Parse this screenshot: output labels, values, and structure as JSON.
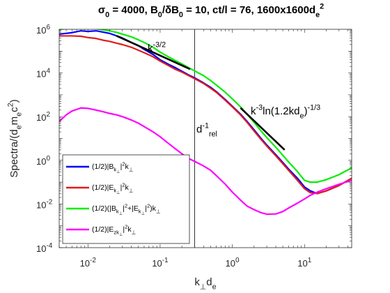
{
  "chart_data": {
    "type": "line",
    "title": {
      "parts": [
        {
          "t": "σ",
          "s": "n"
        },
        {
          "t": "0",
          "s": "sub"
        },
        {
          "t": " = 4000, B",
          "s": "n"
        },
        {
          "t": "0",
          "s": "sub"
        },
        {
          "t": "/δB",
          "s": "n"
        },
        {
          "t": "0",
          "s": "sub"
        },
        {
          "t": " = 10, ct/l = 76, 1600x1600d",
          "s": "n"
        },
        {
          "t": "e",
          "s": "sub"
        },
        {
          "t": "2",
          "s": "sup"
        }
      ]
    },
    "xlabel": {
      "parts": [
        {
          "t": "k",
          "s": "n"
        },
        {
          "t": "⊥",
          "s": "sub"
        },
        {
          "t": "d",
          "s": "n"
        },
        {
          "t": "e",
          "s": "sub"
        }
      ]
    },
    "ylabel": {
      "parts": [
        {
          "t": "Spectra/(d",
          "s": "n"
        },
        {
          "t": "e",
          "s": "sub"
        },
        {
          "t": "m",
          "s": "n"
        },
        {
          "t": "e",
          "s": "sub"
        },
        {
          "t": "c",
          "s": "n"
        },
        {
          "t": "2",
          "s": "sup"
        },
        {
          "t": ")",
          "s": "n"
        }
      ]
    },
    "xscale": "log",
    "yscale": "log",
    "xlim": [
      0.004,
      45
    ],
    "ylim": [
      0.0001,
      1000000
    ],
    "x_ticks": [
      {
        "value": 0.01,
        "base": "10",
        "exp": "-2"
      },
      {
        "value": 0.1,
        "base": "10",
        "exp": "-1"
      },
      {
        "value": 1,
        "base": "10",
        "exp": "0"
      },
      {
        "value": 10,
        "base": "10",
        "exp": "1"
      }
    ],
    "y_ticks": [
      {
        "value": 0.0001,
        "base": "10",
        "exp": "-4"
      },
      {
        "value": 0.01,
        "base": "10",
        "exp": "-2"
      },
      {
        "value": 1,
        "base": "10",
        "exp": "0"
      },
      {
        "value": 100,
        "base": "10",
        "exp": "2"
      },
      {
        "value": 10000,
        "base": "10",
        "exp": "4"
      },
      {
        "value": 1000000,
        "base": "10",
        "exp": "6"
      }
    ],
    "grid": false,
    "legend_position": "bottom-left",
    "series": [
      {
        "key": "B",
        "color": "#0000ff",
        "legend": [
          {
            "t": "(1/2)|B",
            "s": "n"
          },
          {
            "t": "k",
            "s": "sub"
          },
          {
            "t": "⊥",
            "s": "subsub"
          },
          {
            "t": "|",
            "s": "n"
          },
          {
            "t": "2",
            "s": "sup"
          },
          {
            "t": "k",
            "s": "n"
          },
          {
            "t": "⊥",
            "s": "sub"
          }
        ],
        "x": [
          0.004,
          0.006,
          0.008,
          0.01,
          0.013,
          0.016,
          0.02,
          0.025,
          0.03,
          0.04,
          0.05,
          0.06,
          0.08,
          0.1,
          0.13,
          0.16,
          0.2,
          0.25,
          0.3,
          0.4,
          0.5,
          0.6,
          0.8,
          1.0,
          1.3,
          1.6,
          2.0,
          2.5,
          3.0,
          4.0,
          5.0,
          6.0,
          8.0,
          10,
          12,
          15,
          20,
          30,
          45
        ],
        "y": [
          600000,
          700000,
          850000,
          800000,
          850000,
          750000,
          650000,
          500000,
          400000,
          250000,
          180000,
          120000,
          70000,
          40000,
          25000,
          18000,
          12000,
          8000,
          6000,
          3500,
          2200,
          1400,
          600,
          300,
          130,
          60,
          25,
          10,
          5,
          1.8,
          0.8,
          0.4,
          0.15,
          0.06,
          0.04,
          0.03,
          0.04,
          0.07,
          0.15
        ]
      },
      {
        "key": "E",
        "color": "#e31a1c",
        "legend": [
          {
            "t": "(1/2)|E",
            "s": "n"
          },
          {
            "t": "k",
            "s": "sub"
          },
          {
            "t": "⊥",
            "s": "subsub"
          },
          {
            "t": "|",
            "s": "n"
          },
          {
            "t": "2",
            "s": "sup"
          },
          {
            "t": "k",
            "s": "n"
          },
          {
            "t": "⊥",
            "s": "sub"
          }
        ],
        "x": [
          0.004,
          0.006,
          0.008,
          0.01,
          0.013,
          0.016,
          0.02,
          0.025,
          0.03,
          0.04,
          0.05,
          0.06,
          0.08,
          0.1,
          0.13,
          0.16,
          0.2,
          0.25,
          0.3,
          0.4,
          0.5,
          0.6,
          0.8,
          1.0,
          1.3,
          1.6,
          2.0,
          2.5,
          3.0,
          4.0,
          5.0,
          6.0,
          8.0,
          10,
          12,
          15,
          20,
          30,
          45
        ],
        "y": [
          500000,
          500000,
          480000,
          420000,
          380000,
          320000,
          280000,
          230000,
          200000,
          150000,
          110000,
          85000,
          55000,
          35000,
          22000,
          15000,
          11000,
          7500,
          5500,
          3300,
          2000,
          1300,
          560,
          280,
          120,
          55,
          22,
          9,
          4.5,
          1.6,
          0.7,
          0.35,
          0.12,
          0.05,
          0.033,
          0.03,
          0.04,
          0.07,
          0.15
        ]
      },
      {
        "key": "BE",
        "color": "#00ee00",
        "legend": [
          {
            "t": "(1/2)(|B",
            "s": "n"
          },
          {
            "t": "k",
            "s": "sub"
          },
          {
            "t": "⊥",
            "s": "subsub"
          },
          {
            "t": "|",
            "s": "n"
          },
          {
            "t": "2",
            "s": "sup"
          },
          {
            "t": "+|E",
            "s": "n"
          },
          {
            "t": "k",
            "s": "sub"
          },
          {
            "t": "⊥",
            "s": "subsub"
          },
          {
            "t": "|",
            "s": "n"
          },
          {
            "t": "2",
            "s": "sup"
          },
          {
            "t": ")k",
            "s": "n"
          },
          {
            "t": "⊥",
            "s": "sub"
          }
        ],
        "x": [
          0.004,
          0.006,
          0.008,
          0.01,
          0.013,
          0.016,
          0.02,
          0.025,
          0.03,
          0.04,
          0.05,
          0.06,
          0.08,
          0.1,
          0.13,
          0.16,
          0.2,
          0.25,
          0.3,
          0.4,
          0.5,
          0.6,
          0.8,
          1.0,
          1.3,
          1.6,
          2.0,
          2.5,
          3.0,
          4.0,
          5.0,
          6.0,
          8.0,
          10,
          12,
          15,
          20,
          30,
          45
        ],
        "y": [
          1000000,
          1100000,
          1150000,
          1100000,
          1050000,
          950000,
          850000,
          720000,
          600000,
          450000,
          330000,
          250000,
          150000,
          90000,
          55000,
          38000,
          26000,
          17000,
          12500,
          7500,
          4500,
          2800,
          1300,
          650,
          280,
          130,
          55,
          22,
          11,
          4,
          1.7,
          0.85,
          0.3,
          0.12,
          0.1,
          0.1,
          0.13,
          0.22,
          0.45
        ]
      },
      {
        "key": "Ez",
        "color": "#ff00ff",
        "legend": [
          {
            "t": "(1/2)|E",
            "s": "n"
          },
          {
            "t": "zk",
            "s": "sub"
          },
          {
            "t": "⊥",
            "s": "subsub"
          },
          {
            "t": "|",
            "s": "n"
          },
          {
            "t": "2",
            "s": "sup"
          },
          {
            "t": "k",
            "s": "n"
          },
          {
            "t": "⊥",
            "s": "sub"
          }
        ],
        "x": [
          0.004,
          0.005,
          0.006,
          0.008,
          0.01,
          0.013,
          0.016,
          0.02,
          0.025,
          0.03,
          0.04,
          0.05,
          0.06,
          0.08,
          0.1,
          0.13,
          0.16,
          0.2,
          0.25,
          0.3,
          0.4,
          0.5,
          0.6,
          0.8,
          1.0,
          1.3,
          1.6,
          2.0,
          2.5,
          3.0,
          4.0,
          5.0,
          6.0,
          8.0,
          10,
          12,
          15,
          20,
          30,
          45
        ],
        "y": [
          60,
          120,
          180,
          250,
          240,
          200,
          170,
          140,
          120,
          100,
          70,
          50,
          35,
          20,
          12,
          6,
          3.5,
          2,
          1.2,
          0.9,
          0.55,
          0.35,
          0.2,
          0.08,
          0.035,
          0.015,
          0.008,
          0.0055,
          0.004,
          0.0034,
          0.0035,
          0.0045,
          0.0065,
          0.011,
          0.017,
          0.025,
          0.035,
          0.05,
          0.08,
          0.12
        ]
      }
    ],
    "reference_lines": [
      {
        "key": "k32",
        "x": [
          0.025,
          0.26
        ],
        "y": [
          500000,
          15000
        ],
        "color": "#000000",
        "label": [
          {
            "t": "k",
            "s": "n"
          },
          {
            "t": "-3/2",
            "s": "sup"
          }
        ]
      },
      {
        "key": "k3ln",
        "x": [
          1.3,
          5.3
        ],
        "y": [
          250,
          3
        ],
        "color": "#000000",
        "label": [
          {
            "t": "k",
            "s": "n"
          },
          {
            "t": "-3",
            "s": "sup"
          },
          {
            "t": "ln(1.2kd",
            "s": "n"
          },
          {
            "t": "e",
            "s": "sub"
          },
          {
            "t": ")",
            "s": "n"
          },
          {
            "t": "-1/3",
            "s": "sup"
          }
        ]
      }
    ],
    "vertical_line": {
      "x": 0.3,
      "color": "#000000",
      "label": [
        {
          "t": "d",
          "s": "n"
        },
        {
          "t": "-1",
          "s": "sup"
        },
        {
          "t": "rel",
          "s": "sub"
        }
      ]
    }
  }
}
